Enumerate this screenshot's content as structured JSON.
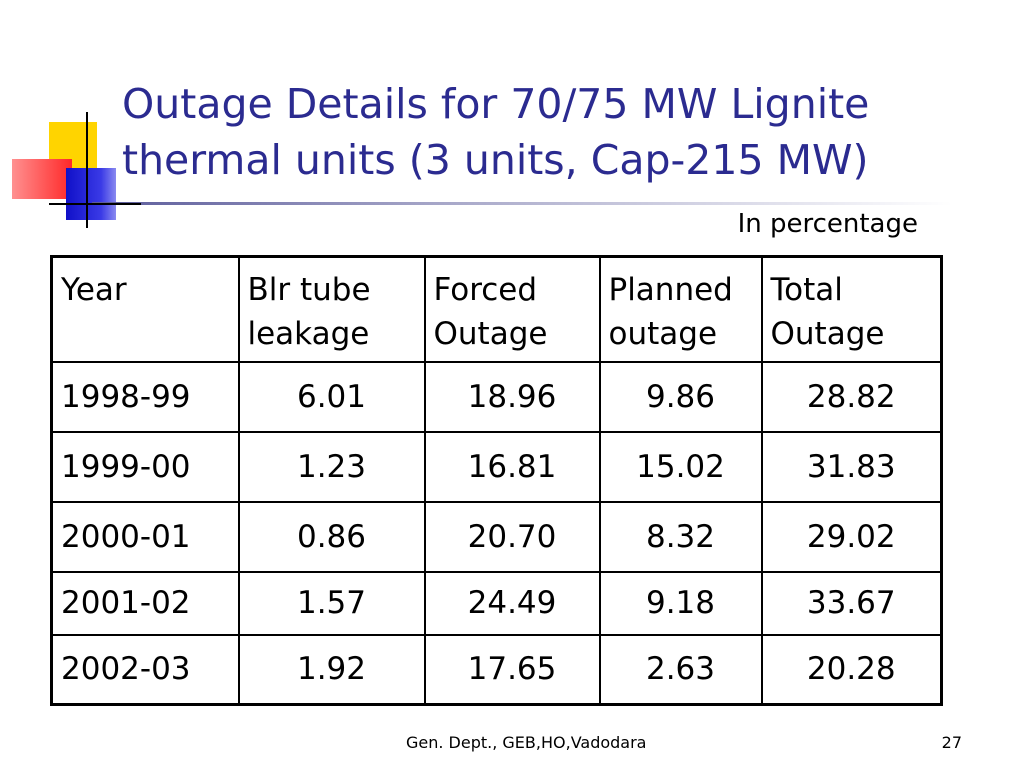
{
  "slide": {
    "title_line1": "Outage Details for 70/75 MW Lignite",
    "title_line2": "thermal units (3 units, Cap-215 MW)",
    "unit_note": "In percentage",
    "footer": "Gen. Dept., GEB,HO,Vadodara",
    "page_number": "27",
    "title_color": "#2b2b90"
  },
  "table": {
    "headers": [
      [
        "Year",
        ""
      ],
      [
        "Blr tube",
        "leakage"
      ],
      [
        "Forced",
        "Outage"
      ],
      [
        "Planned",
        "outage"
      ],
      [
        "Total",
        "Outage"
      ]
    ],
    "rows": [
      [
        "1998-99",
        "6.01",
        "18.96",
        "9.86",
        "28.82"
      ],
      [
        "1999-00",
        "1.23",
        "16.81",
        "15.02",
        "31.83"
      ],
      [
        "2000-01",
        "0.86",
        "20.70",
        "8.32",
        "29.02"
      ],
      [
        "2001-02",
        "1.57",
        "24.49",
        "9.18",
        "33.67"
      ],
      [
        "2002-03",
        "1.92",
        "17.65",
        "2.63",
        "20.28"
      ]
    ]
  }
}
